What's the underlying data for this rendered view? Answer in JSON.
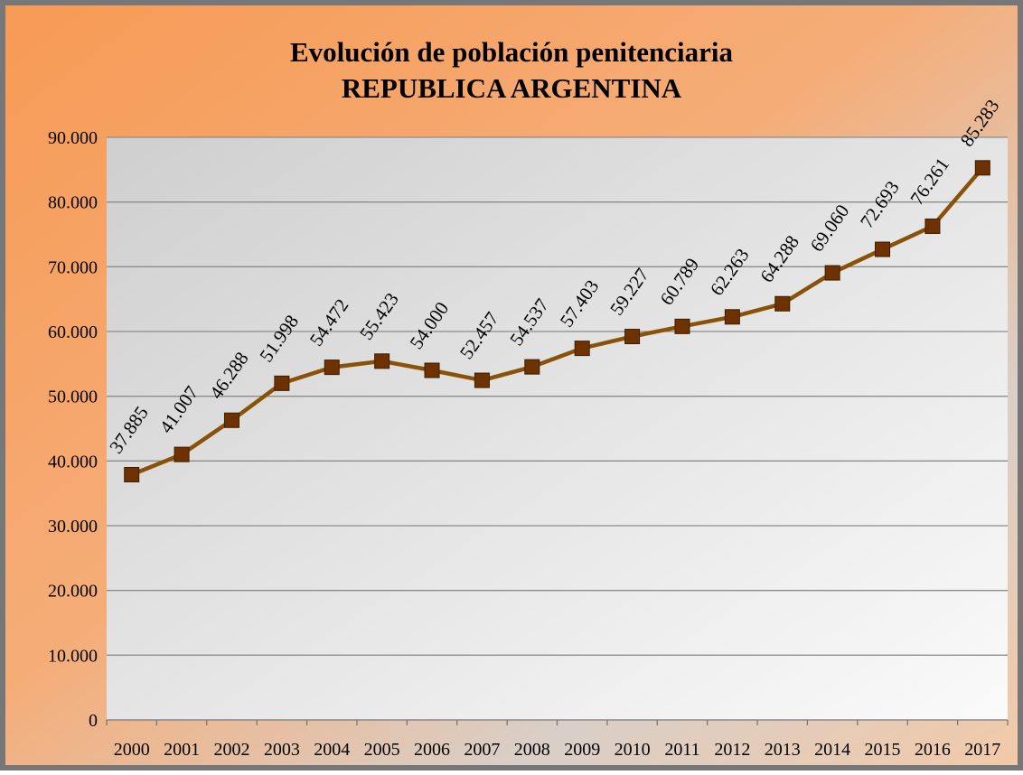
{
  "chart_data": {
    "type": "line",
    "title": "Evolución de población penitenciaria",
    "subtitle": "REPUBLICA ARGENTINA",
    "categories": [
      "2000",
      "2001",
      "2002",
      "2003",
      "2004",
      "2005",
      "2006",
      "2007",
      "2008",
      "2009",
      "2010",
      "2011",
      "2012",
      "2013",
      "2014",
      "2015",
      "2016",
      "2017"
    ],
    "series": [
      {
        "name": "Población penitenciaria",
        "color": "#8a5208",
        "marker_color": "#6e3200",
        "values": [
          37885,
          41007,
          46288,
          51998,
          54472,
          55423,
          54000,
          52457,
          54537,
          57403,
          59227,
          60789,
          62263,
          64288,
          69060,
          72693,
          76261,
          85283
        ],
        "value_labels": [
          "37.885",
          "41.007",
          "46.288",
          "51.998",
          "54.472",
          "55.423",
          "54.000",
          "52.457",
          "54.537",
          "57.403",
          "59.227",
          "60.789",
          "62.263",
          "64.288",
          "69.060",
          "72.693",
          "76.261",
          "85.283"
        ]
      }
    ],
    "ylim": [
      0,
      90000
    ],
    "yticks": [
      0,
      {
        "value": 10000,
        "label": "10.000"
      },
      {
        "value": 20000,
        "label": "20.000"
      },
      {
        "value": 30000,
        "label": "30.000"
      },
      {
        "value": 40000,
        "label": "40.000"
      },
      {
        "value": 50000,
        "label": "50.000"
      },
      {
        "value": 60000,
        "label": "60.000"
      },
      {
        "value": 70000,
        "label": "70.000"
      },
      {
        "value": 80000,
        "label": "80.000"
      },
      {
        "value": 90000,
        "label": "90.000"
      }
    ],
    "grid": true
  }
}
